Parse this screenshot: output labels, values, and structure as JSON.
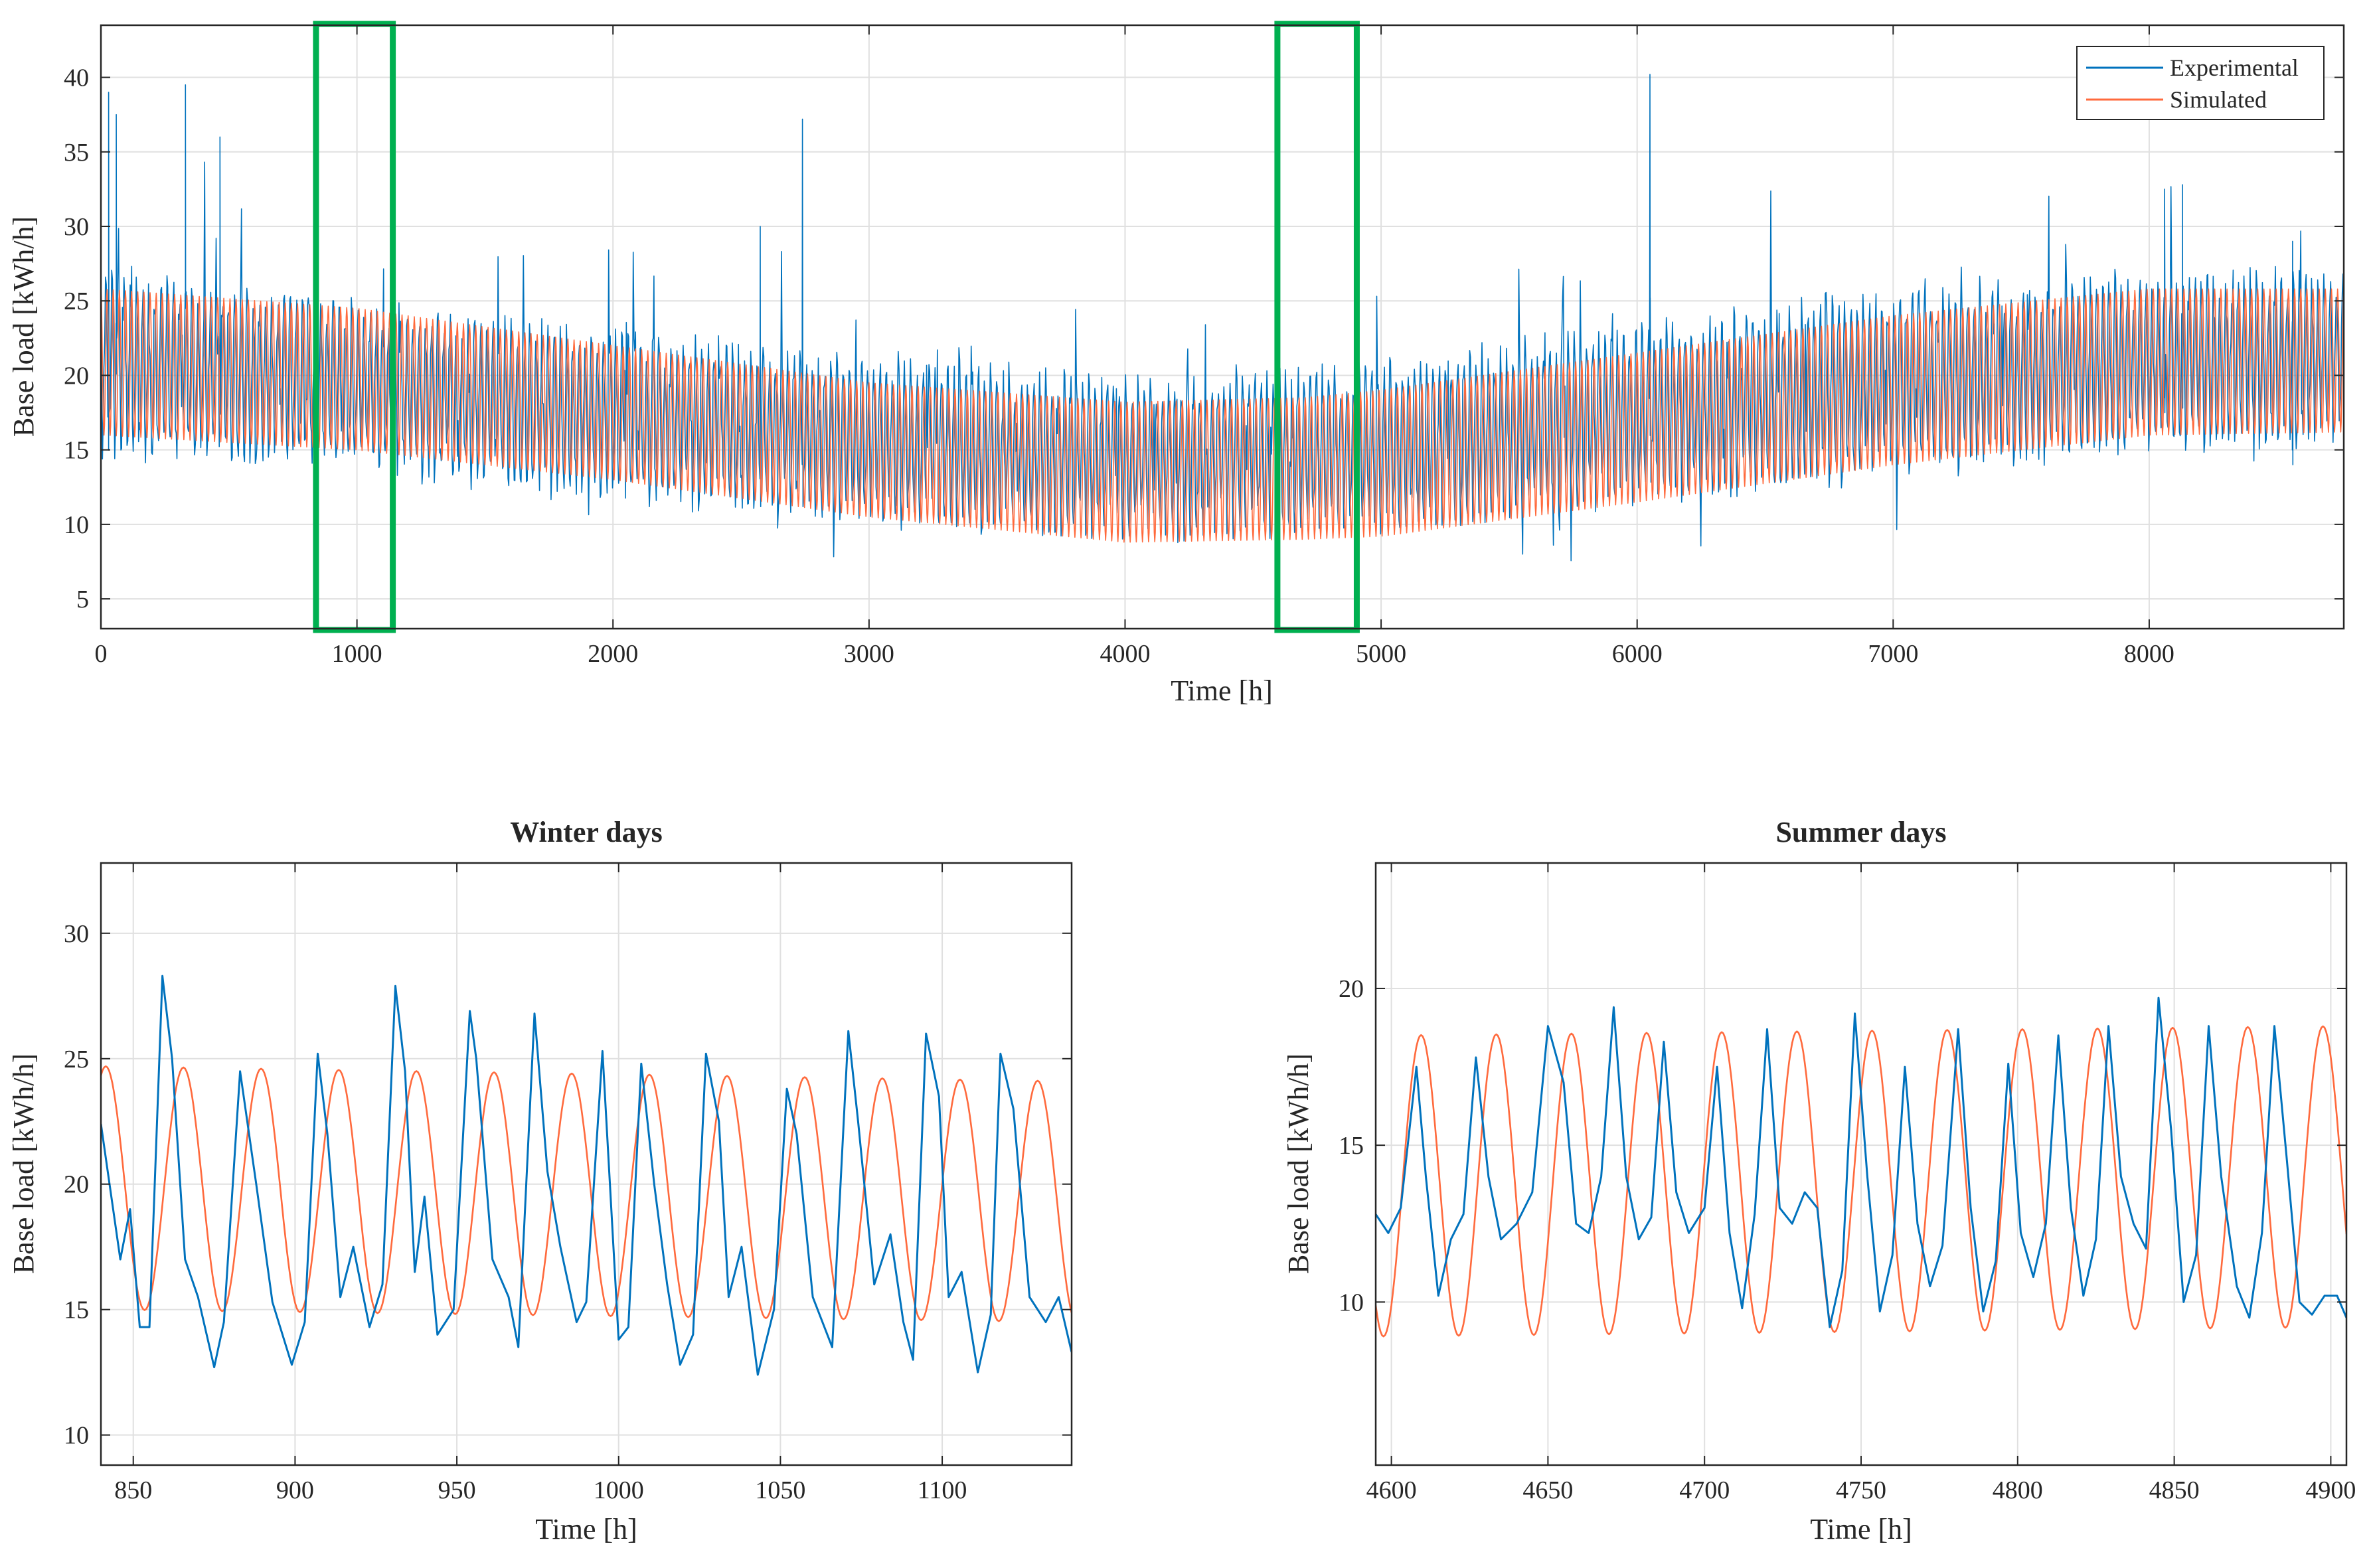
{
  "figure": {
    "colors": {
      "experimental": "#0072bd",
      "simulated": "#ff6a3d",
      "highlight": "#00b050",
      "grid": "#e0e0e0",
      "axis": "#262626"
    }
  },
  "chart_data": [
    {
      "id": "annual",
      "type": "line",
      "title": "",
      "xlabel": "Time [h]",
      "ylabel": "Base load [kWh/h]",
      "xlim": [
        0,
        8760
      ],
      "ylim": [
        3,
        43.5
      ],
      "xticks": [
        0,
        1000,
        2000,
        3000,
        4000,
        5000,
        6000,
        7000,
        8000
      ],
      "yticks": [
        5,
        10,
        15,
        20,
        25,
        30,
        35,
        40
      ],
      "grid": true,
      "legend": {
        "position": "top-right",
        "entries": [
          "Experimental",
          "Simulated"
        ]
      },
      "highlight_windows": [
        [
          840,
          1140
        ],
        [
          4595,
          4905
        ]
      ],
      "series": [
        {
          "name": "Experimental",
          "description": "hourly measured base load, daily oscillation, envelope 15-27 kWh/h in winter and 9-20 kWh/h in summer, peaks up to ~40",
          "envelope_x": [
            0,
            1000,
            2000,
            3000,
            4000,
            5000,
            6000,
            7000,
            8000,
            8760
          ],
          "envelope_low": [
            15.5,
            14.5,
            12.5,
            11,
            10,
            10.5,
            12.5,
            14,
            16,
            16.5
          ],
          "envelope_high": [
            26,
            24,
            22,
            20.5,
            19,
            20,
            22.5,
            25,
            26,
            26
          ],
          "spikes": [
            [
              30,
              39
            ],
            [
              60,
              37.5
            ],
            [
              330,
              39.5
            ],
            [
              465,
              36
            ],
            [
              2575,
              30
            ],
            [
              2740,
              37.2
            ],
            [
              6050,
              40.2
            ],
            [
              8060,
              32.5
            ],
            [
              8130,
              32.8
            ],
            [
              8560,
              29
            ]
          ]
        },
        {
          "name": "Simulated",
          "description": "sinusoidal daily model, amplitude following seasonal envelope",
          "envelope_x": [
            0,
            1000,
            2000,
            3000,
            4000,
            4700,
            5000,
            6000,
            7000,
            8000,
            8760
          ],
          "envelope_low": [
            16,
            15,
            13,
            10.5,
            8.8,
            9,
            9.2,
            11.5,
            14,
            16,
            16.2
          ],
          "envelope_high": [
            25.8,
            24.5,
            22,
            19.5,
            18.2,
            18.5,
            19,
            21.5,
            24,
            25.8,
            25.8
          ]
        }
      ]
    },
    {
      "id": "winter",
      "type": "line",
      "title": "Winter days",
      "xlabel": "Time [h]",
      "ylabel": "Base load [kWh/h]",
      "xlim": [
        840,
        1140
      ],
      "ylim": [
        8.8,
        32.8
      ],
      "xticks": [
        850,
        900,
        950,
        1000,
        1050,
        1100
      ],
      "yticks": [
        10,
        15,
        20,
        25,
        30
      ],
      "grid": true,
      "series": [
        {
          "name": "Experimental",
          "x": [
            840,
            846,
            849,
            852,
            855,
            859,
            862,
            866,
            870,
            875,
            878,
            883,
            888,
            893,
            899,
            903,
            907,
            910,
            914,
            918,
            923,
            927,
            931,
            934,
            937,
            940,
            944,
            949,
            954,
            956,
            961,
            966,
            969,
            974,
            978,
            982,
            987,
            990,
            995,
            1000,
            1003,
            1007,
            1011,
            1015,
            1019,
            1023,
            1027,
            1031,
            1034,
            1038,
            1043,
            1048,
            1052,
            1055,
            1060,
            1066,
            1071,
            1074,
            1079,
            1084,
            1088,
            1091,
            1095,
            1099,
            1102,
            1106,
            1111,
            1115,
            1118,
            1122,
            1127,
            1132,
            1136,
            1140
          ],
          "y": [
            22.4,
            17,
            19,
            14.3,
            14.3,
            28.3,
            25,
            17,
            15.5,
            12.7,
            14.5,
            24.5,
            20,
            15.3,
            12.8,
            14.5,
            25.2,
            22,
            15.5,
            17.5,
            14.3,
            16,
            27.9,
            24.5,
            16.5,
            19.5,
            14,
            15,
            26.9,
            25,
            17,
            15.5,
            13.5,
            26.8,
            20.5,
            17.5,
            14.5,
            15.3,
            25.3,
            13.8,
            14.3,
            24.8,
            20,
            16,
            12.8,
            14,
            25.2,
            22.5,
            15.5,
            17.5,
            12.4,
            15,
            23.8,
            22,
            15.5,
            13.5,
            26.1,
            22.5,
            16,
            18,
            14.5,
            13,
            26,
            23.5,
            15.5,
            16.5,
            12.5,
            14.8,
            25.2,
            23,
            15.5,
            14.5,
            15.5,
            13.3
          ]
        },
        {
          "name": "Simulated",
          "period": 24,
          "peak_hour": 841.5,
          "start_low": 15,
          "start_high": 24.7,
          "end_low": 14.5,
          "end_high": 24.1
        }
      ]
    },
    {
      "id": "summer",
      "type": "line",
      "title": "Summer days",
      "xlabel": "Time [h]",
      "ylabel": "Base load [kWh/h]",
      "xlim": [
        4595,
        4905
      ],
      "ylim": [
        4.8,
        24
      ],
      "xticks": [
        4600,
        4650,
        4700,
        4750,
        4800,
        4850,
        4900
      ],
      "yticks": [
        10,
        15,
        20
      ],
      "grid": true,
      "series": [
        {
          "name": "Experimental",
          "x": [
            4595,
            4599,
            4603,
            4608,
            4611,
            4615,
            4619,
            4623,
            4627,
            4631,
            4635,
            4640,
            4645,
            4650,
            4655,
            4659,
            4663,
            4667,
            4671,
            4675,
            4679,
            4683,
            4687,
            4691,
            4695,
            4700,
            4704,
            4708,
            4712,
            4716,
            4720,
            4724,
            4728,
            4732,
            4736,
            4740,
            4744,
            4748,
            4752,
            4756,
            4760,
            4764,
            4768,
            4772,
            4776,
            4781,
            4785,
            4789,
            4793,
            4797,
            4801,
            4805,
            4809,
            4813,
            4817,
            4821,
            4825,
            4829,
            4833,
            4837,
            4841,
            4845,
            4849,
            4853,
            4857,
            4861,
            4865,
            4870,
            4874,
            4878,
            4882,
            4886,
            4890,
            4894,
            4898,
            4902,
            4905
          ],
          "y": [
            12.8,
            12.2,
            13,
            17.5,
            14,
            10.2,
            12,
            12.8,
            17.8,
            14,
            12,
            12.5,
            13.5,
            18.8,
            17,
            12.5,
            12.2,
            14,
            19.4,
            14,
            12,
            12.7,
            18.3,
            13.5,
            12.2,
            13,
            17.5,
            12.2,
            9.8,
            12.8,
            18.7,
            13,
            12.5,
            13.5,
            13,
            9.2,
            11,
            19.2,
            14,
            9.7,
            11.5,
            17.5,
            12.5,
            10.5,
            11.8,
            18.7,
            13,
            9.7,
            11.3,
            17.6,
            12.2,
            10.8,
            12.5,
            18.5,
            13,
            10.2,
            12,
            18.8,
            14,
            12.5,
            11.7,
            19.7,
            15.5,
            10,
            11.5,
            18.8,
            14,
            10.5,
            9.5,
            12.2,
            18.8,
            14.5,
            10,
            9.6,
            10.2,
            10.2,
            9.5
          ]
        },
        {
          "name": "Simulated",
          "period": 24,
          "peak_hour": 4609.5,
          "start_low": 8.9,
          "start_high": 18.5,
          "end_low": 9.2,
          "end_high": 18.8
        }
      ]
    }
  ]
}
